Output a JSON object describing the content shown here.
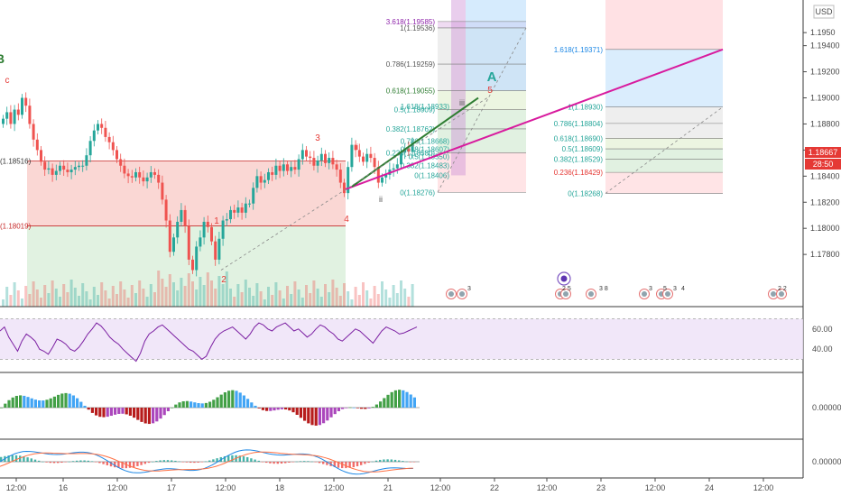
{
  "chart_data": {
    "type": "candlestick",
    "currency_label": "USD",
    "price_axis": {
      "range": [
        1.174,
        1.1975
      ],
      "ticks": [
        "1.1950",
        "1.19400",
        "1.19200",
        "1.19000",
        "1.18800",
        "1.18600",
        "1.18400",
        "1.18200",
        "1.18000",
        "1.17800"
      ],
      "tick_values": [
        1.195,
        1.194,
        1.192,
        1.19,
        1.188,
        1.186,
        1.184,
        1.182,
        1.18,
        1.178
      ],
      "current_price": "1.18667",
      "countdown": "28:50"
    },
    "time_axis": {
      "labels": [
        "12:00",
        "16",
        "12:00",
        "17",
        "12:00",
        "18",
        "12:00",
        "21",
        "12:00",
        "22",
        "12:00",
        "23",
        "12:00",
        "24",
        "12:00"
      ]
    },
    "series_close": [
      1.1884,
      1.1889,
      1.188,
      1.1891,
      1.1887,
      1.19,
      1.1894,
      1.188,
      1.1868,
      1.186,
      1.1851,
      1.1845,
      1.1846,
      1.1841,
      1.1844,
      1.1848,
      1.1845,
      1.1843,
      1.1845,
      1.1847,
      1.1848,
      1.1848,
      1.1856,
      1.1867,
      1.1875,
      1.188,
      1.1877,
      1.187,
      1.1866,
      1.186,
      1.1853,
      1.1848,
      1.1842,
      1.184,
      1.1839,
      1.1843,
      1.1839,
      1.1836,
      1.1839,
      1.1843,
      1.1841,
      1.1835,
      1.1822,
      1.1806,
      1.1782,
      1.1793,
      1.1805,
      1.1814,
      1.1802,
      1.1776,
      1.1768,
      1.1786,
      1.1793,
      1.1805,
      1.1801,
      1.179,
      1.1776,
      1.1792,
      1.1806,
      1.1807,
      1.1814,
      1.1812,
      1.1816,
      1.1812,
      1.1819,
      1.1819,
      1.1831,
      1.184,
      1.1835,
      1.1837,
      1.1843,
      1.1841,
      1.1848,
      1.1844,
      1.1849,
      1.1844,
      1.1847,
      1.1845,
      1.1853,
      1.186,
      1.1855,
      1.1854,
      1.1848,
      1.1852,
      1.1857,
      1.185,
      1.1854,
      1.1849,
      1.1845,
      1.1835,
      1.1827,
      1.1847,
      1.1864,
      1.186,
      1.1855,
      1.1851,
      1.1857,
      1.1854,
      1.1847,
      1.1835,
      1.1839,
      1.1841,
      1.1845,
      1.1846,
      1.1849,
      1.1858,
      1.1861,
      1.1859,
      1.1866
    ],
    "wave_labels": [
      {
        "label": "B",
        "color": "#2e7d32"
      },
      {
        "label": "c",
        "color": "#e53935"
      },
      {
        "label": "1",
        "color": "#e53935"
      },
      {
        "label": "2",
        "color": "#e53935"
      },
      {
        "label": "3",
        "color": "#e53935"
      },
      {
        "label": "4",
        "color": "#e53935"
      },
      {
        "label": "i",
        "color": "#e53935"
      },
      {
        "label": "ii",
        "color": "#555555"
      },
      {
        "label": "iii",
        "color": "#555555"
      },
      {
        "label": "5",
        "color": "#e53935"
      },
      {
        "label": "A",
        "color": "#26a69a"
      }
    ],
    "price_labels": [
      "(1.18516)",
      "(1.18019)"
    ],
    "fib_left": {
      "levels": [
        "3.618(1.19585)",
        "1(1.19536)",
        "0.786(1.19259)",
        "0.618(1.19055)",
        "0.5(1.18909)",
        "0.382(1.18762)",
        "0.236(1.18580)",
        "0(1.18276)"
      ],
      "extra": [
        "1.618(1.18933)",
        "0.786(1.18668)",
        "0.618(1.18607)",
        "0.5(1.18550)",
        "0.382(1.18483)",
        "0(1.18406)"
      ]
    },
    "fib_right": {
      "levels": [
        "1.618(1.19371)",
        "1(1.18930)",
        "0.786(1.18804)",
        "0.618(1.18690)",
        "0.5(1.18609)",
        "0.382(1.18529)",
        "0.236(1.18429)",
        "0(1.18268)"
      ]
    },
    "rsi": {
      "ticks": [
        "60.00",
        "40.00"
      ],
      "values": [
        58,
        62,
        52,
        45,
        38,
        48,
        55,
        52,
        48,
        40,
        38,
        35,
        42,
        50,
        48,
        45,
        40,
        38,
        42,
        48,
        55,
        60,
        66,
        63,
        58,
        52,
        48,
        45,
        40,
        36,
        32,
        28,
        36,
        48,
        55,
        58,
        62,
        64,
        60,
        56,
        52,
        48,
        44,
        40,
        38,
        34,
        30,
        33,
        42,
        50,
        55,
        58,
        60,
        62,
        58,
        54,
        50,
        55,
        62,
        66,
        64,
        60,
        58,
        62,
        64,
        66,
        62,
        58,
        60,
        56,
        52,
        55,
        60,
        64,
        62,
        58,
        55,
        50,
        48,
        52,
        56,
        60,
        58,
        54,
        50,
        46,
        52,
        58,
        62,
        60,
        58,
        55,
        56,
        58,
        60,
        62
      ]
    },
    "ao": {
      "ticks": [
        "0.00000"
      ]
    },
    "macd": {
      "ticks": [
        "0.00000"
      ]
    },
    "calendar_badges": [
      "3",
      "2 5",
      "3 8",
      "3",
      "5",
      "3",
      "4",
      "2 2"
    ]
  }
}
